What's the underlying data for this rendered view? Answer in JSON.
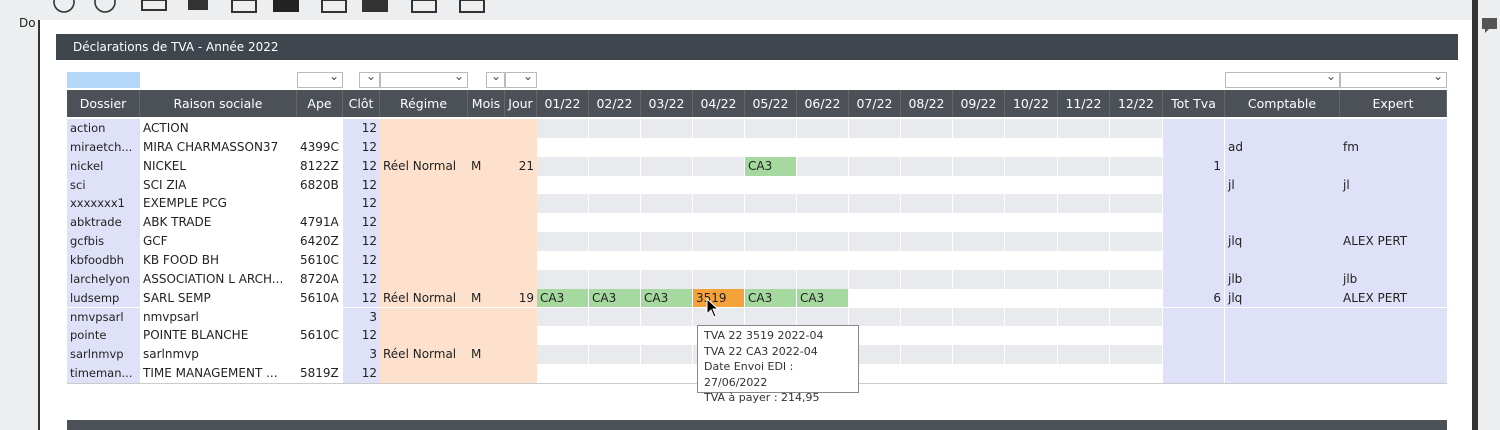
{
  "side_label": "Do",
  "panel_title": "Déclarations de TVA - Année 2022",
  "table": {
    "headers": [
      "Dossier",
      "Raison sociale",
      "Ape",
      "Clôt",
      "Régime",
      "Mois",
      "Jour",
      "01/22",
      "02/22",
      "03/22",
      "04/22",
      "05/22",
      "06/22",
      "07/22",
      "08/22",
      "09/22",
      "10/22",
      "11/22",
      "12/22",
      "Tot Tva",
      "Comptable",
      "Expert"
    ],
    "rows": [
      [
        "action",
        "ACTION",
        null,
        12,
        null,
        null,
        null,
        null,
        null,
        null,
        null,
        null,
        null,
        null,
        null,
        null,
        null,
        null,
        null,
        null,
        null,
        null
      ],
      [
        "miraetch...",
        "MIRA  CHARMASSON37",
        "4399C",
        12,
        null,
        null,
        null,
        null,
        null,
        null,
        null,
        null,
        null,
        null,
        null,
        null,
        null,
        null,
        null,
        null,
        "ad",
        "fm"
      ],
      [
        "nickel",
        "NICKEL",
        "8122Z",
        12,
        "Réel Normal",
        "M",
        21,
        null,
        null,
        null,
        null,
        {
          "text": "CA3",
          "color": "#a6d9a0"
        },
        null,
        null,
        null,
        null,
        null,
        null,
        null,
        1,
        null,
        null
      ],
      [
        "sci",
        "SCI ZIA",
        "6820B",
        12,
        null,
        null,
        null,
        null,
        null,
        null,
        null,
        null,
        null,
        null,
        null,
        null,
        null,
        null,
        null,
        null,
        "jl",
        "jl"
      ],
      [
        "xxxxxxx1",
        "EXEMPLE PCG",
        null,
        12,
        null,
        null,
        null,
        null,
        null,
        null,
        null,
        null,
        null,
        null,
        null,
        null,
        null,
        null,
        null,
        null,
        null,
        null
      ],
      [
        "abktrade",
        "ABK TRADE",
        "4791A",
        12,
        null,
        null,
        null,
        null,
        null,
        null,
        null,
        null,
        null,
        null,
        null,
        null,
        null,
        null,
        null,
        null,
        null,
        null
      ],
      [
        "gcfbis",
        "GCF",
        "6420Z",
        12,
        null,
        null,
        null,
        null,
        null,
        null,
        null,
        null,
        null,
        null,
        null,
        null,
        null,
        null,
        null,
        null,
        "jlq",
        "ALEX PERT"
      ],
      [
        "kbfoodbh",
        "KB FOOD BH",
        "5610C",
        12,
        null,
        null,
        null,
        null,
        null,
        null,
        null,
        null,
        null,
        null,
        null,
        null,
        null,
        null,
        null,
        null,
        null,
        null
      ],
      [
        "larchelyon",
        "ASSOCIATION L ARCH...",
        "8720A",
        12,
        null,
        null,
        null,
        null,
        null,
        null,
        null,
        null,
        null,
        null,
        null,
        null,
        null,
        null,
        null,
        null,
        "jlb",
        "jlb"
      ],
      [
        "ludsemp",
        "SARL SEMP",
        "5610A",
        12,
        "Réel Normal",
        "M",
        19,
        {
          "text": "CA3",
          "color": "#a6d9a0"
        },
        {
          "text": "CA3",
          "color": "#a6d9a0"
        },
        {
          "text": "CA3",
          "color": "#a6d9a0"
        },
        {
          "text": "3519",
          "color": "#f4a23a"
        },
        {
          "text": "CA3",
          "color": "#a6d9a0"
        },
        {
          "text": "CA3",
          "color": "#a6d9a0"
        },
        null,
        null,
        null,
        null,
        null,
        null,
        6,
        "jlq",
        "ALEX PERT"
      ],
      [
        "nmvpsarl",
        "nmvpsarl",
        null,
        3,
        null,
        null,
        null,
        null,
        null,
        null,
        null,
        null,
        null,
        null,
        null,
        null,
        null,
        null,
        null,
        null,
        null,
        null
      ],
      [
        "pointe",
        "POINTE BLANCHE",
        "5610C",
        12,
        null,
        null,
        null,
        null,
        null,
        null,
        null,
        null,
        null,
        null,
        null,
        null,
        null,
        null,
        null,
        null,
        null,
        null
      ],
      [
        "sarlnmvp",
        "sarlnmvp",
        null,
        3,
        "Réel Normal",
        "M",
        null,
        null,
        null,
        null,
        null,
        null,
        null,
        null,
        null,
        null,
        null,
        null,
        null,
        null,
        null,
        null
      ],
      [
        "timeman...",
        "TIME MANAGEMENT ...",
        "5819Z",
        12,
        null,
        null,
        null,
        null,
        null,
        null,
        null,
        null,
        null,
        null,
        null,
        null,
        null,
        null,
        null,
        null,
        null,
        null
      ]
    ]
  },
  "tooltip": [
    "TVA 22 3519 2022-04",
    "TVA 22 CA3 2022-04",
    "Date Envoi EDI : 27/06/2022",
    "TVA à payer : 214,95"
  ]
}
